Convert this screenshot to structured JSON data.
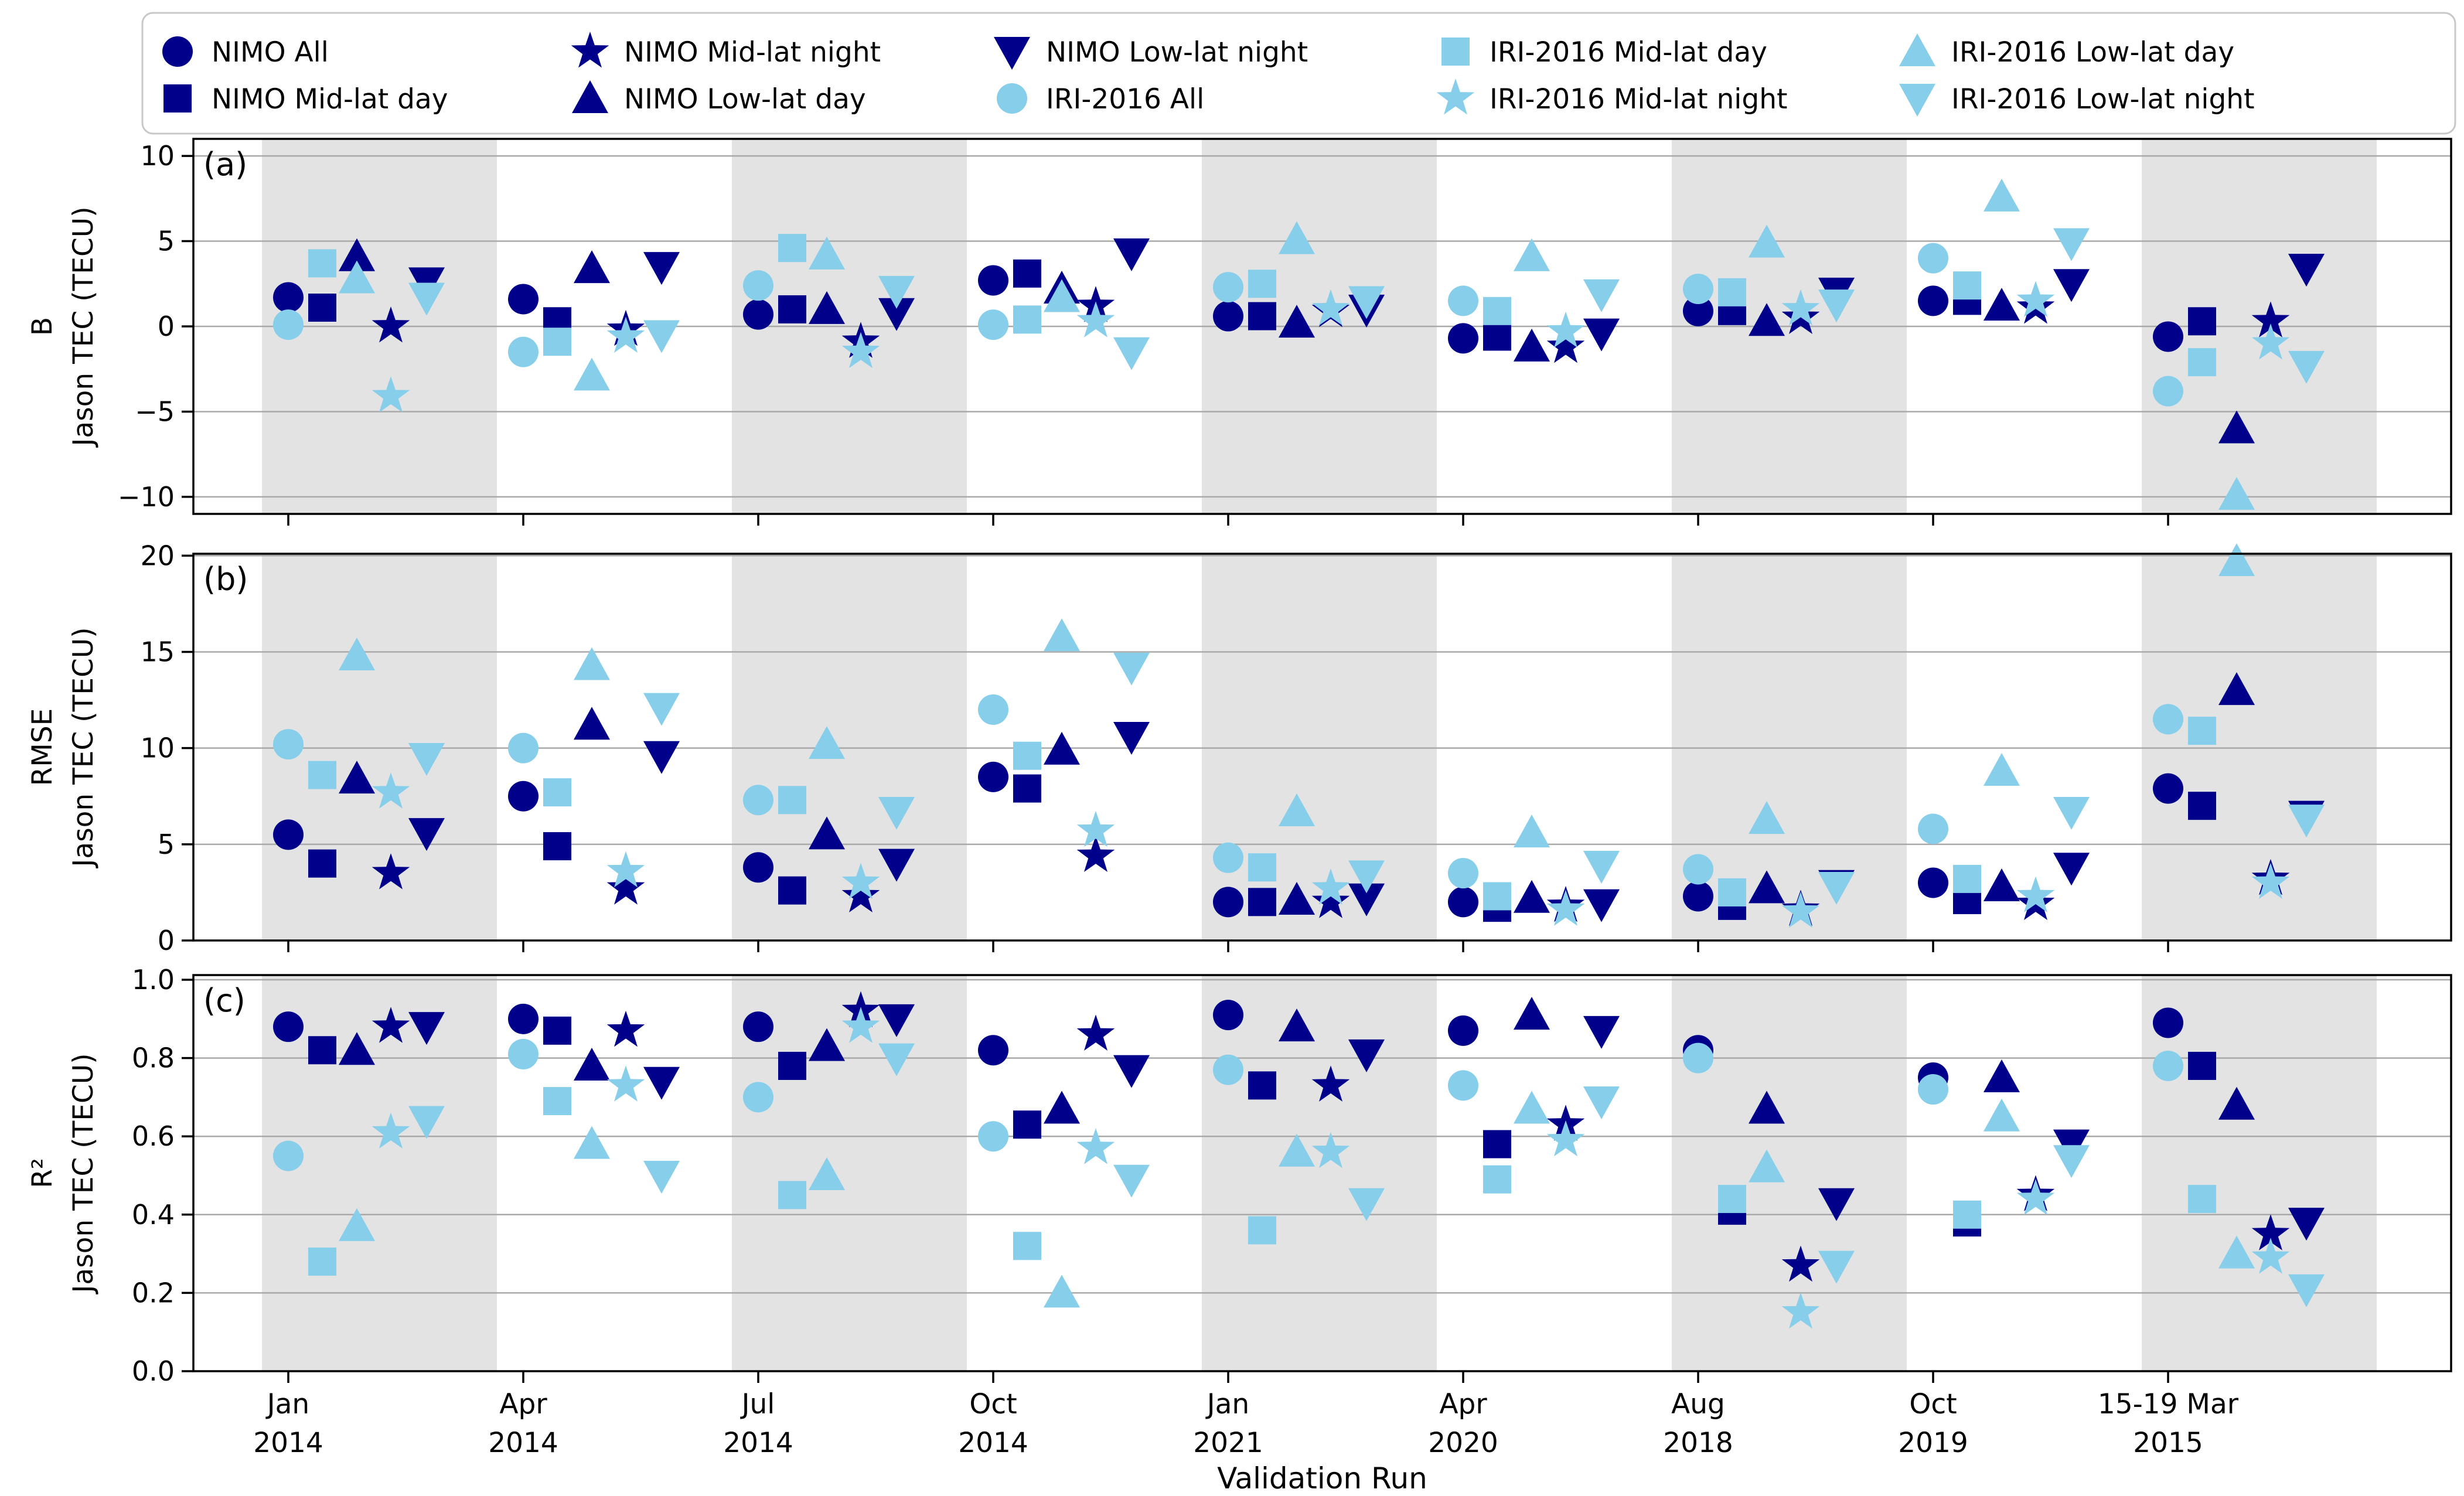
{
  "figure": {
    "xlabel": "Validation Run",
    "panel_letters": [
      "(a)",
      "(b)",
      "(c)"
    ]
  },
  "colors": {
    "nimo": "#00008B",
    "iri": "#87CEEB",
    "band": "#e3e3e3",
    "grid": "#a9a9a9",
    "axis": "#000000",
    "legend_border": "#c8c8c8"
  },
  "chart_data": {
    "type": "scatter",
    "title": "",
    "xlabel": "Validation Run",
    "legend_position": "top",
    "grid": "horizontal",
    "categories_line1": [
      "Jan",
      "Apr",
      "Jul",
      "Oct",
      "Jan",
      "Apr",
      "Aug",
      "Oct",
      "15-19 Mar"
    ],
    "categories_line2": [
      "2014",
      "2014",
      "2014",
      "2014",
      "2021",
      "2020",
      "2018",
      "2019",
      "2015"
    ],
    "shaded_category_indices": [
      0,
      2,
      4,
      6,
      8
    ],
    "series": [
      {
        "name": "NIMO All",
        "marker": "circle",
        "color_key": "nimo"
      },
      {
        "name": "NIMO Mid-lat day",
        "marker": "square",
        "color_key": "nimo"
      },
      {
        "name": "NIMO Mid-lat night",
        "marker": "star",
        "color_key": "nimo"
      },
      {
        "name": "NIMO Low-lat day",
        "marker": "triup",
        "color_key": "nimo"
      },
      {
        "name": "NIMO Low-lat night",
        "marker": "tridown",
        "color_key": "nimo"
      },
      {
        "name": "IRI-2016 All",
        "marker": "circle",
        "color_key": "iri"
      },
      {
        "name": "IRI-2016 Mid-lat day",
        "marker": "square",
        "color_key": "iri"
      },
      {
        "name": "IRI-2016 Mid-lat night",
        "marker": "star",
        "color_key": "iri"
      },
      {
        "name": "IRI-2016 Low-lat day",
        "marker": "triup",
        "color_key": "iri"
      },
      {
        "name": "IRI-2016 Low-lat night",
        "marker": "tridown",
        "color_key": "iri"
      }
    ],
    "legend_grid_rows": [
      [
        0,
        2,
        4,
        6,
        8
      ],
      [
        1,
        3,
        5,
        7,
        9
      ]
    ],
    "panels": [
      {
        "label": "(a)",
        "ylabel_line1": "B",
        "ylabel_line2": "Jason TEC (TECU)",
        "ylim": [
          -11,
          11
        ],
        "yticks": [
          10,
          5,
          0,
          -5,
          -10
        ],
        "yticklabels": [
          "10",
          "5",
          "0",
          "−5",
          "−10"
        ],
        "series_values": [
          [
            1.7,
            1.6,
            0.7,
            2.7,
            0.6,
            -0.7,
            0.9,
            1.5,
            -0.6
          ],
          [
            1.1,
            0.3,
            1.0,
            3.1,
            0.6,
            -0.6,
            0.9,
            1.5,
            0.3
          ],
          [
            0.0,
            -0.2,
            -0.9,
            1.2,
            0.9,
            -1.2,
            0.5,
            1.1,
            0.3
          ],
          [
            4.1,
            3.4,
            1.0,
            2.2,
            0.2,
            -1.2,
            0.3,
            1.2,
            -6.0
          ],
          [
            2.6,
            3.5,
            0.8,
            4.3,
            1.0,
            -0.4,
            2.0,
            2.5,
            3.4
          ],
          [
            0.1,
            -1.5,
            2.4,
            0.1,
            2.3,
            1.5,
            2.2,
            4.0,
            -3.8
          ],
          [
            3.7,
            -0.9,
            4.6,
            0.4,
            2.5,
            0.9,
            2.0,
            2.4,
            -2.1
          ],
          [
            -4.1,
            -0.6,
            -1.5,
            0.3,
            1.0,
            -0.3,
            1.0,
            1.5,
            -1.0
          ],
          [
            2.8,
            -2.9,
            4.2,
            1.7,
            5.1,
            4.1,
            4.9,
            7.6,
            -9.9
          ],
          [
            1.7,
            -0.5,
            2.1,
            -1.5,
            1.5,
            1.9,
            1.3,
            4.9,
            -2.3
          ]
        ]
      },
      {
        "label": "(b)",
        "ylabel_line1": "RMSE",
        "ylabel_line2": "Jason TEC (TECU)",
        "ylim": [
          0,
          20.1
        ],
        "yticks": [
          20,
          15,
          10,
          5,
          0
        ],
        "yticklabels": [
          "20",
          "15",
          "10",
          "5",
          "0"
        ],
        "series_values": [
          [
            5.5,
            7.5,
            3.8,
            8.5,
            2.0,
            2.0,
            2.3,
            3.0,
            7.9
          ],
          [
            4.0,
            4.9,
            2.6,
            7.9,
            2.0,
            1.7,
            1.8,
            2.1,
            7.0
          ],
          [
            3.5,
            2.7,
            2.3,
            4.4,
            2.0,
            1.8,
            1.6,
            1.9,
            3.2
          ],
          [
            8.4,
            11.2,
            5.5,
            9.9,
            2.1,
            2.2,
            2.7,
            2.8,
            13.0
          ],
          [
            5.6,
            9.6,
            4.0,
            10.6,
            2.2,
            1.9,
            2.9,
            3.8,
            6.5
          ],
          [
            10.2,
            10.0,
            7.3,
            12.0,
            4.3,
            3.5,
            3.7,
            5.8,
            11.5
          ],
          [
            8.6,
            7.7,
            7.3,
            9.6,
            3.8,
            2.3,
            2.5,
            3.2,
            10.9
          ],
          [
            7.7,
            3.6,
            3.0,
            5.7,
            2.7,
            1.6,
            1.5,
            2.3,
            3.0
          ],
          [
            14.8,
            14.3,
            10.2,
            15.8,
            6.7,
            5.6,
            6.3,
            8.8,
            19.7
          ],
          [
            9.5,
            12.1,
            6.7,
            14.2,
            3.4,
            3.9,
            2.8,
            6.7,
            6.3
          ]
        ]
      },
      {
        "label": "(c)",
        "ylabel_line1": "R²",
        "ylabel_line2": "Jason TEC (TECU)",
        "ylim": [
          0,
          1.012
        ],
        "yticks": [
          1.0,
          0.8,
          0.6,
          0.4,
          0.2,
          0.0
        ],
        "yticklabels": [
          "1.0",
          "0.8",
          "0.6",
          "0.4",
          "0.2",
          "0.0"
        ],
        "series_values": [
          [
            0.88,
            0.9,
            0.88,
            0.82,
            0.91,
            0.87,
            0.82,
            0.75,
            0.89
          ],
          [
            0.82,
            0.87,
            0.78,
            0.63,
            0.73,
            0.58,
            0.41,
            0.38,
            0.78
          ],
          [
            0.88,
            0.87,
            0.92,
            0.86,
            0.73,
            0.63,
            0.27,
            0.45,
            0.35
          ],
          [
            0.82,
            0.78,
            0.83,
            0.67,
            0.88,
            0.91,
            0.67,
            0.75,
            0.68
          ],
          [
            0.88,
            0.74,
            0.9,
            0.77,
            0.81,
            0.87,
            0.43,
            0.58,
            0.38
          ],
          [
            0.55,
            0.81,
            0.7,
            0.6,
            0.77,
            0.73,
            0.8,
            0.72,
            0.78
          ],
          [
            0.28,
            0.69,
            0.45,
            0.32,
            0.36,
            0.49,
            0.44,
            0.4,
            0.44
          ],
          [
            0.61,
            0.73,
            0.88,
            0.57,
            0.56,
            0.59,
            0.15,
            0.44,
            0.29
          ],
          [
            0.37,
            0.58,
            0.5,
            0.2,
            0.56,
            0.67,
            0.52,
            0.65,
            0.3
          ],
          [
            0.64,
            0.5,
            0.8,
            0.49,
            0.43,
            0.69,
            0.27,
            0.54,
            0.21
          ]
        ]
      }
    ]
  }
}
